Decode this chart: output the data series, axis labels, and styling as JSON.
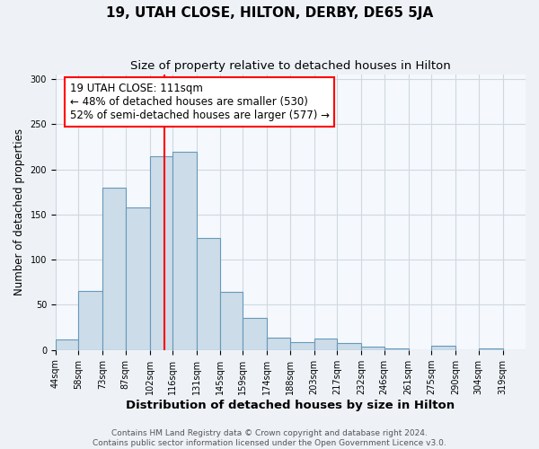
{
  "title": "19, UTAH CLOSE, HILTON, DERBY, DE65 5JA",
  "subtitle": "Size of property relative to detached houses in Hilton",
  "xlabel": "Distribution of detached houses by size in Hilton",
  "ylabel": "Number of detached properties",
  "bar_edges": [
    44,
    58,
    73,
    87,
    102,
    116,
    131,
    145,
    159,
    174,
    188,
    203,
    217,
    232,
    246,
    261,
    275,
    290,
    304,
    319,
    333
  ],
  "bar_heights": [
    12,
    65,
    180,
    158,
    215,
    220,
    124,
    64,
    36,
    14,
    9,
    13,
    8,
    4,
    2,
    0,
    5,
    0,
    2,
    0
  ],
  "bar_color": "#ccdce8",
  "bar_edge_color": "#6699bb",
  "vline_x": 111,
  "vline_color": "red",
  "annotation_text": "19 UTAH CLOSE: 111sqm\n← 48% of detached houses are smaller (530)\n52% of semi-detached houses are larger (577) →",
  "annotation_box_color": "white",
  "annotation_box_edge_color": "red",
  "ylim": [
    0,
    305
  ],
  "yticks": [
    0,
    50,
    100,
    150,
    200,
    250,
    300
  ],
  "footer_text": "Contains HM Land Registry data © Crown copyright and database right 2024.\nContains public sector information licensed under the Open Government Licence v3.0.",
  "background_color": "#eef2f7",
  "plot_background_color": "#f5f8fc",
  "title_fontsize": 11,
  "subtitle_fontsize": 9.5,
  "xlabel_fontsize": 9.5,
  "ylabel_fontsize": 8.5,
  "tick_fontsize": 7,
  "annotation_fontsize": 8.5,
  "footer_fontsize": 6.5,
  "grid_color": "#d0d8e0"
}
